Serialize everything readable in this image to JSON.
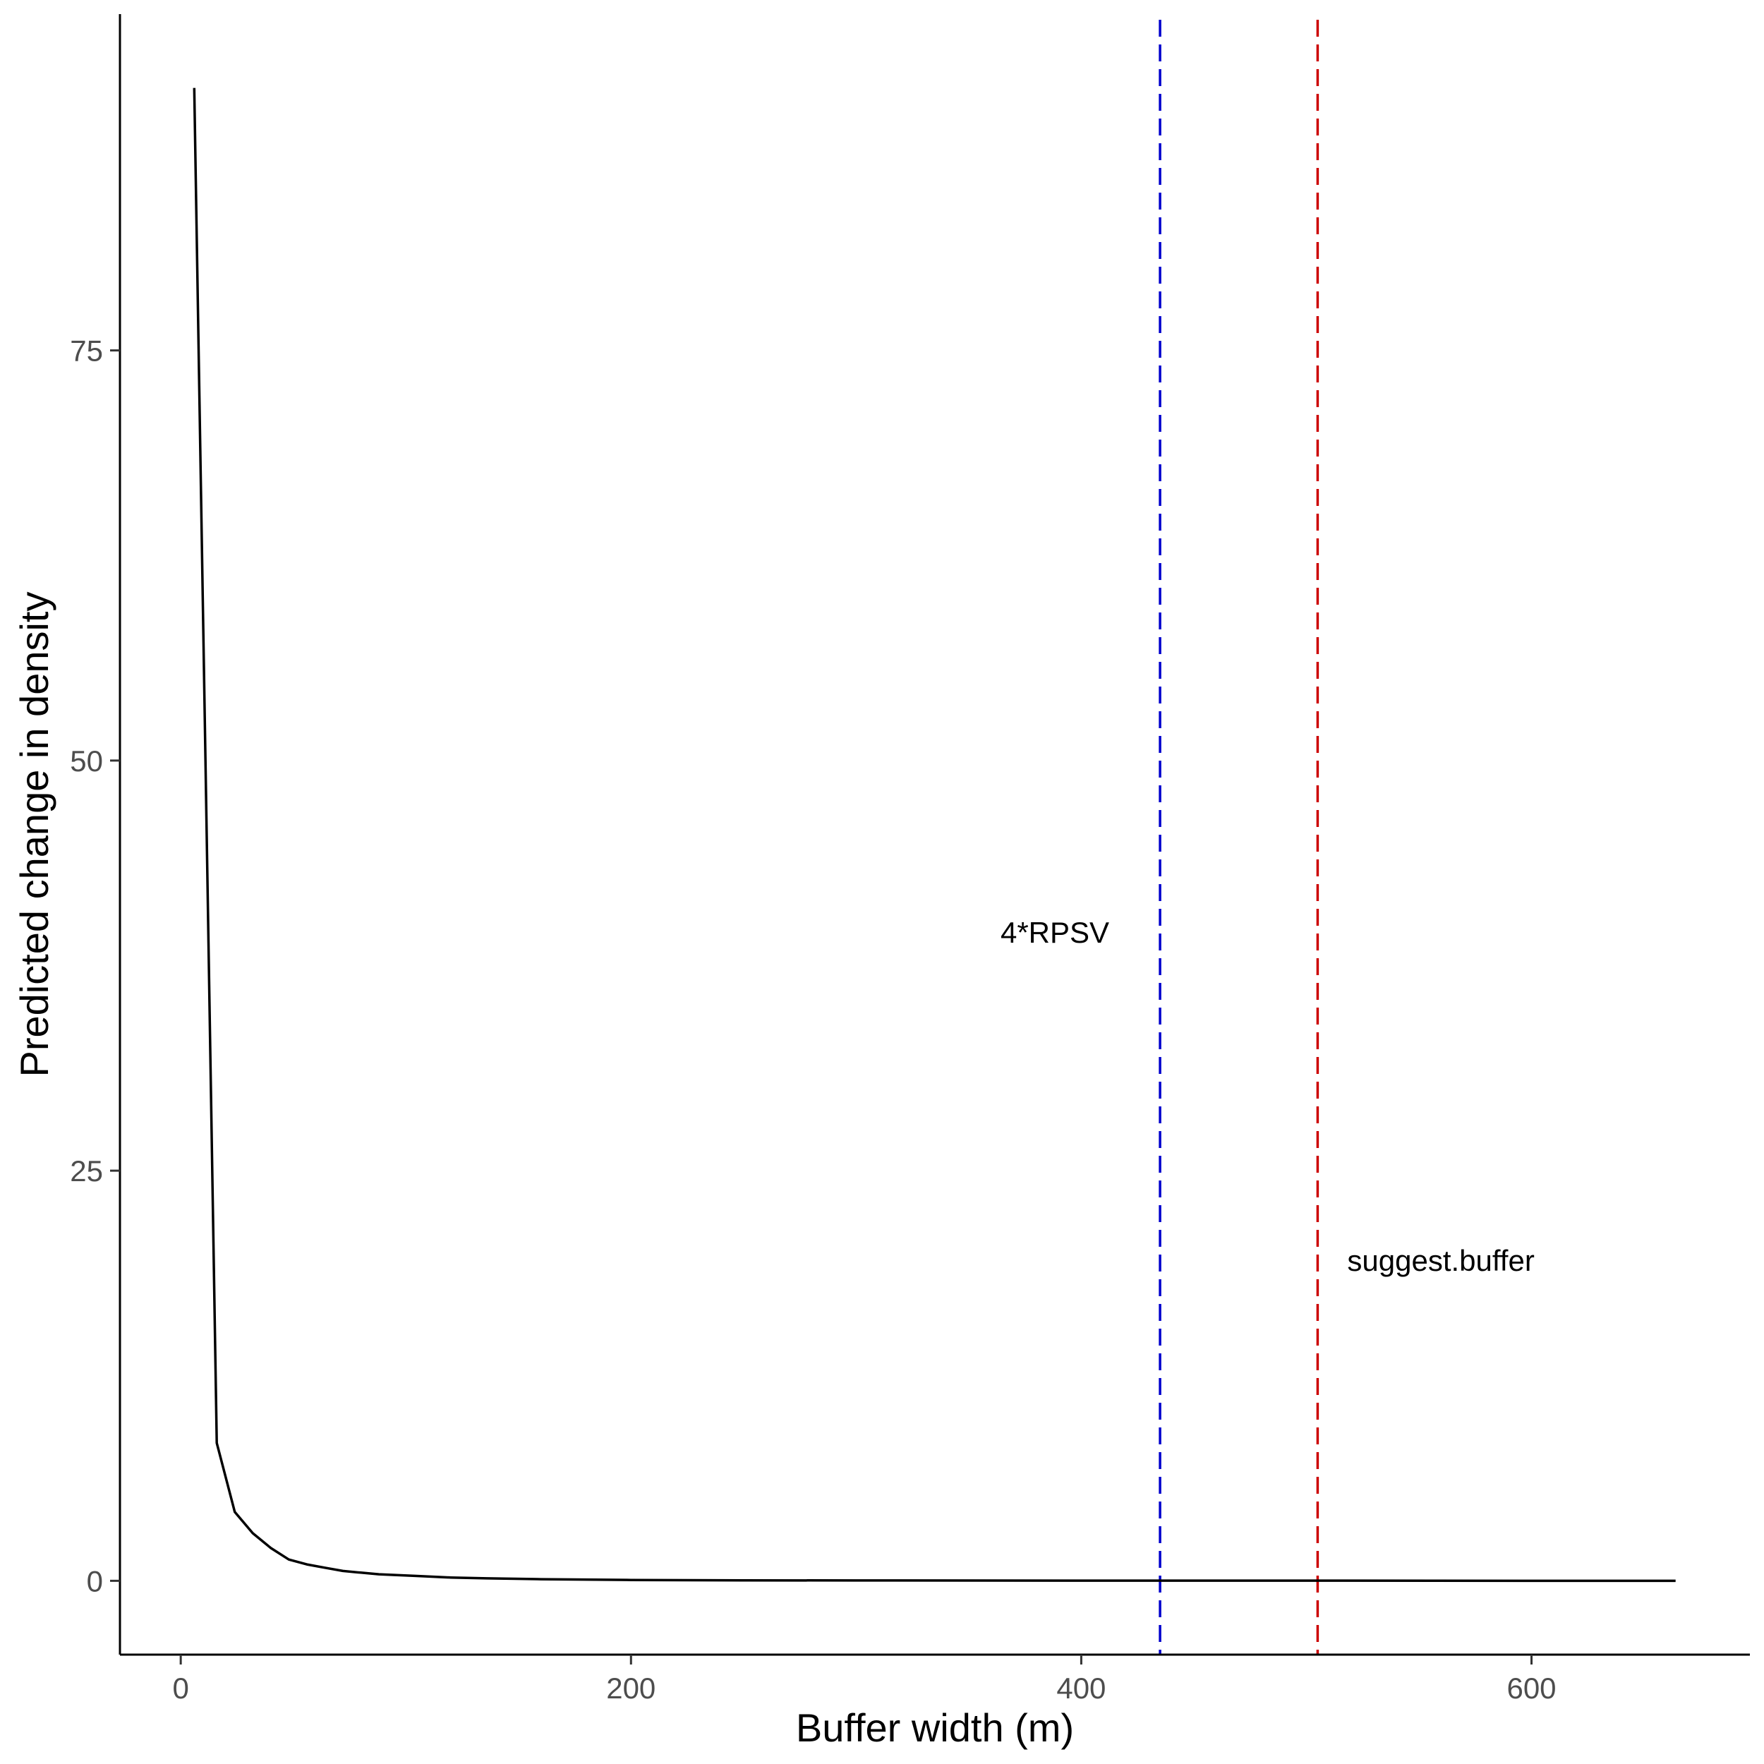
{
  "chart_data": {
    "type": "line",
    "title": "",
    "xlabel": "Buffer width (m)",
    "ylabel": "Predicted change in density",
    "xlim": [
      -27,
      697
    ],
    "ylim": [
      -4.5,
      95.5
    ],
    "x_ticks": [
      0,
      200,
      400,
      600
    ],
    "y_ticks": [
      0,
      25,
      50,
      75
    ],
    "x_tick_labels": [
      "0",
      "200",
      "400",
      "600"
    ],
    "y_tick_labels": [
      "0",
      "25",
      "50",
      "75"
    ],
    "grid": false,
    "legend": "none",
    "series": [
      {
        "color": "#000000",
        "x": [
          6,
          11,
          16,
          24,
          32,
          40,
          48,
          56,
          64,
          72,
          80,
          88,
          96,
          104,
          120,
          136,
          160,
          200,
          250,
          300,
          400,
          500,
          600,
          664
        ],
        "values": [
          91,
          50,
          8.4,
          4.2,
          2.9,
          2.0,
          1.3,
          1.0,
          0.8,
          0.6,
          0.5,
          0.4,
          0.35,
          0.3,
          0.2,
          0.15,
          0.1,
          0.05,
          0.03,
          0.02,
          0.01,
          0.01,
          0.0,
          0.0
        ]
      }
    ],
    "vlines": [
      {
        "x": 435,
        "color": "#0000cc",
        "style": "dashed",
        "label": "4*RPSV",
        "label_y": 39.5,
        "label_side": "left"
      },
      {
        "x": 505,
        "color": "#cc0000",
        "style": "dashed",
        "label": "suggest.buffer",
        "label_y": 19.5,
        "label_side": "right"
      }
    ]
  }
}
